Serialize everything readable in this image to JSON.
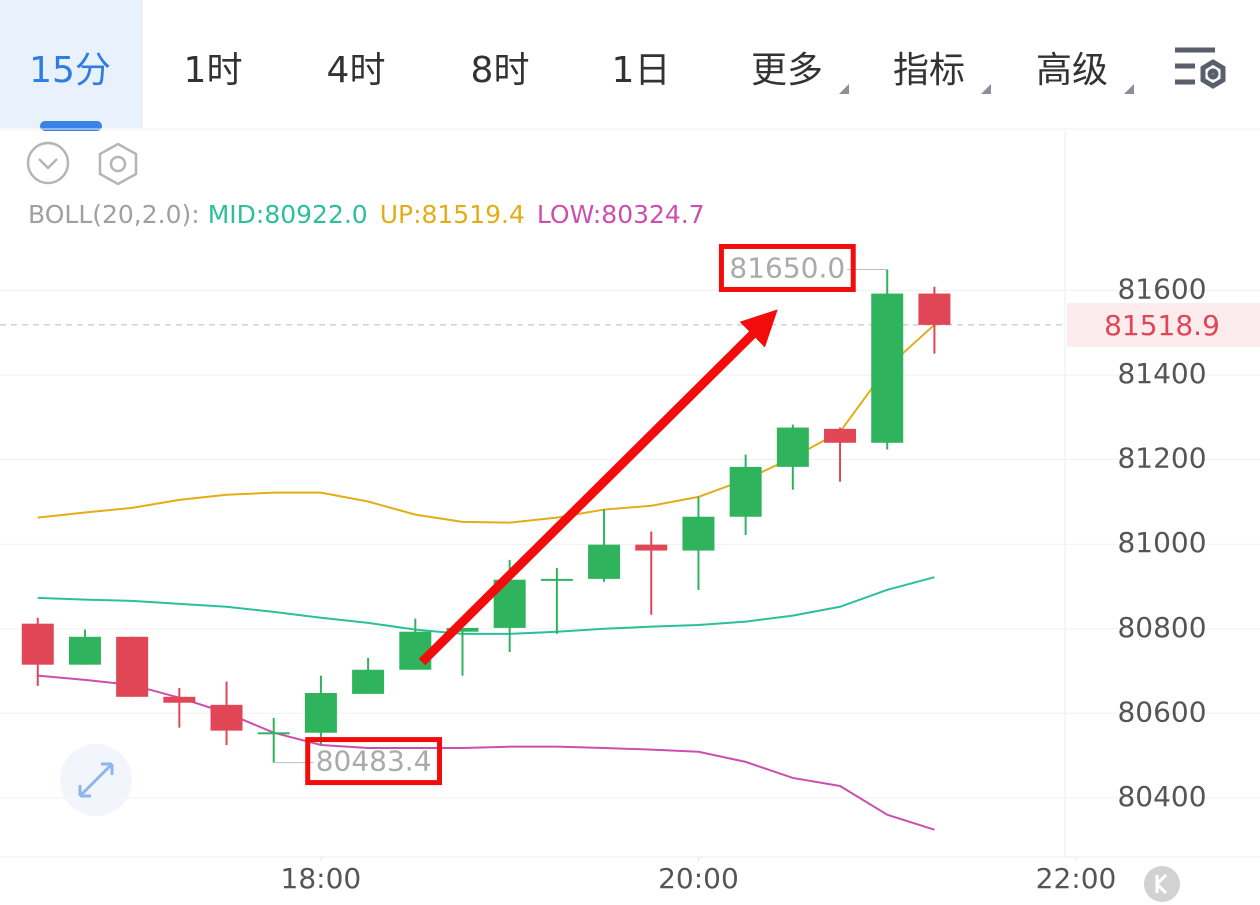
{
  "tabs": [
    {
      "label": "15分"
    },
    {
      "label": "1时"
    },
    {
      "label": "4时"
    },
    {
      "label": "8时"
    },
    {
      "label": "1日"
    },
    {
      "label": "更多",
      "dropdown": true
    },
    {
      "label": "指标",
      "dropdown": true
    },
    {
      "label": "高级",
      "dropdown": true
    }
  ],
  "active_tab": 0,
  "chart_data": {
    "type": "candlestick",
    "up_color": "#2fb45d",
    "down_color": "#e04656",
    "candles": {
      "x": [
        16.5,
        16.75,
        17,
        17.25,
        17.5,
        17.75,
        18,
        18.25,
        18.5,
        18.75,
        19,
        19.25,
        19.5,
        19.75,
        20,
        20.25,
        20.5,
        20.75,
        21,
        21.25
      ],
      "open": [
        80812,
        80715,
        80781,
        80639,
        80620,
        80555,
        80554,
        80646,
        80703,
        80793,
        80802,
        80916,
        80918,
        80999,
        80985,
        81065,
        81183,
        81273,
        81240,
        81593
      ],
      "high": [
        80826,
        80798,
        80781,
        80660,
        80675,
        80589,
        80689,
        80731,
        80824,
        80802,
        80963,
        80944,
        81082,
        81030,
        81112,
        81212,
        81283,
        81276,
        81650,
        81609
      ],
      "low": [
        80665,
        80715,
        80639,
        80566,
        80525,
        80483.4,
        80525,
        80646,
        80703,
        80689,
        80745,
        80788,
        80911,
        80833,
        80892,
        81022,
        81129,
        81148,
        81224,
        81451
      ],
      "close": [
        80715,
        80781,
        80639,
        80625,
        80559,
        80555,
        80648,
        80703,
        80793,
        80802,
        80916,
        80918,
        80999,
        80985,
        81065,
        81183,
        81276,
        81240,
        81593,
        81518.9
      ]
    },
    "indicator": {
      "label": "BOLL(20,2.0):",
      "series": [
        {
          "label": "MID:80922.0",
          "color": "#2cbf9c",
          "values": [
            80873,
            80869,
            80866,
            80859,
            80852,
            80840,
            80826,
            80814,
            80798,
            80788,
            80788,
            80793,
            80800,
            80805,
            80809,
            80817,
            80831,
            80852,
            80892,
            80922
          ]
        },
        {
          "label": "UP:81519.4",
          "color": "#e2ad16",
          "values": [
            81063,
            81075,
            81086,
            81105,
            81117,
            81122,
            81122,
            81101,
            81070,
            81053,
            81051,
            81063,
            81082,
            81091,
            81112,
            81153,
            81205,
            81266,
            81418,
            81519.4
          ]
        },
        {
          "label": "LOW:80324.7",
          "color": "#cc4fb0",
          "values": [
            80689,
            80679,
            80667,
            80637,
            80601,
            80554,
            80525,
            80518,
            80518,
            80518,
            80521,
            80521,
            80518,
            80514,
            80509,
            80485,
            80447,
            80428,
            80360,
            80324.7
          ]
        }
      ]
    },
    "current_price": 81518.9,
    "annotations": [
      {
        "x": 21,
        "value": 81650,
        "label": "81650.0"
      },
      {
        "x": 17.75,
        "value": 80483.4,
        "label": "80483.4"
      }
    ],
    "xlim": [
      16.3,
      22.0
    ],
    "xticks": [
      {
        "value": 18,
        "label": "18:00"
      },
      {
        "value": 20,
        "label": "20:00"
      },
      {
        "value": 22,
        "label": "22:00"
      }
    ],
    "ylim": [
      80260,
      81980
    ],
    "yticks": [
      80400,
      80600,
      80800,
      81000,
      81200,
      81400,
      81600
    ],
    "grid": true
  }
}
